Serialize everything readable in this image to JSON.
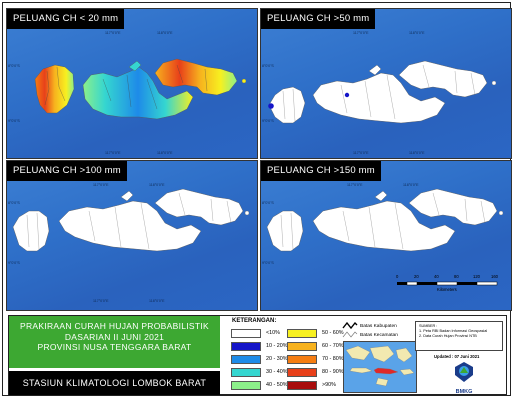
{
  "panels": [
    {
      "title": "PELUANG CH < 20 mm",
      "mode": "colored"
    },
    {
      "title": "PELUANG CH >50 mm",
      "mode": "blank-with-spots"
    },
    {
      "title": "PELUANG CH >100 mm",
      "mode": "blank"
    },
    {
      "title": "PELUANG CH >150 mm",
      "mode": "blank"
    }
  ],
  "coord_labels": {
    "lon": [
      "116°0'0\"E",
      "117°0'0\"E",
      "118°0'0\"E",
      "119°0'0\"E"
    ],
    "lat": [
      "8°0'0\"S",
      "9°0'0\"S"
    ]
  },
  "title_block": {
    "line1": "PRAKIRAAN CURAH HUJAN PROBABILISTIK",
    "line2": "DASARIAN II JUNI 2021",
    "line3": "PROVINSI NUSA TENGGARA BARAT",
    "station": "STASIUN KLIMATOLOGI LOMBOK BARAT"
  },
  "legend": {
    "title": "KETERANGAN:",
    "items": [
      {
        "label": "<10%",
        "color": "#ffffff"
      },
      {
        "label": "10 - 20%",
        "color": "#1515c8"
      },
      {
        "label": "20 - 30%",
        "color": "#1e8be8"
      },
      {
        "label": "30 - 40%",
        "color": "#35d6d0"
      },
      {
        "label": "40 - 50%",
        "color": "#8cf08a"
      },
      {
        "label": "50 - 60%",
        "color": "#f7f020"
      },
      {
        "label": "60 - 70%",
        "color": "#f7b21e"
      },
      {
        "label": "70 - 80%",
        "color": "#f57d12"
      },
      {
        "label": "80 - 90%",
        "color": "#e8401a"
      },
      {
        "label": ">90%",
        "color": "#a80d0d"
      }
    ],
    "boundary_regency": "Batas Kabupaten",
    "boundary_district": "Batas Kecamatan"
  },
  "source": {
    "title": "SUMBER :",
    "line1": "1. Peta RBI Badan Informasi Geospasial",
    "line2": "2. Data Curah Hujan Provinsi NTB"
  },
  "updated": "Updated : 07 Juni 2021",
  "logo_text": "BMKG",
  "scale": {
    "ticks": [
      "0",
      "20",
      "40",
      "80",
      "120",
      "160"
    ],
    "unit": "Kilometers"
  }
}
